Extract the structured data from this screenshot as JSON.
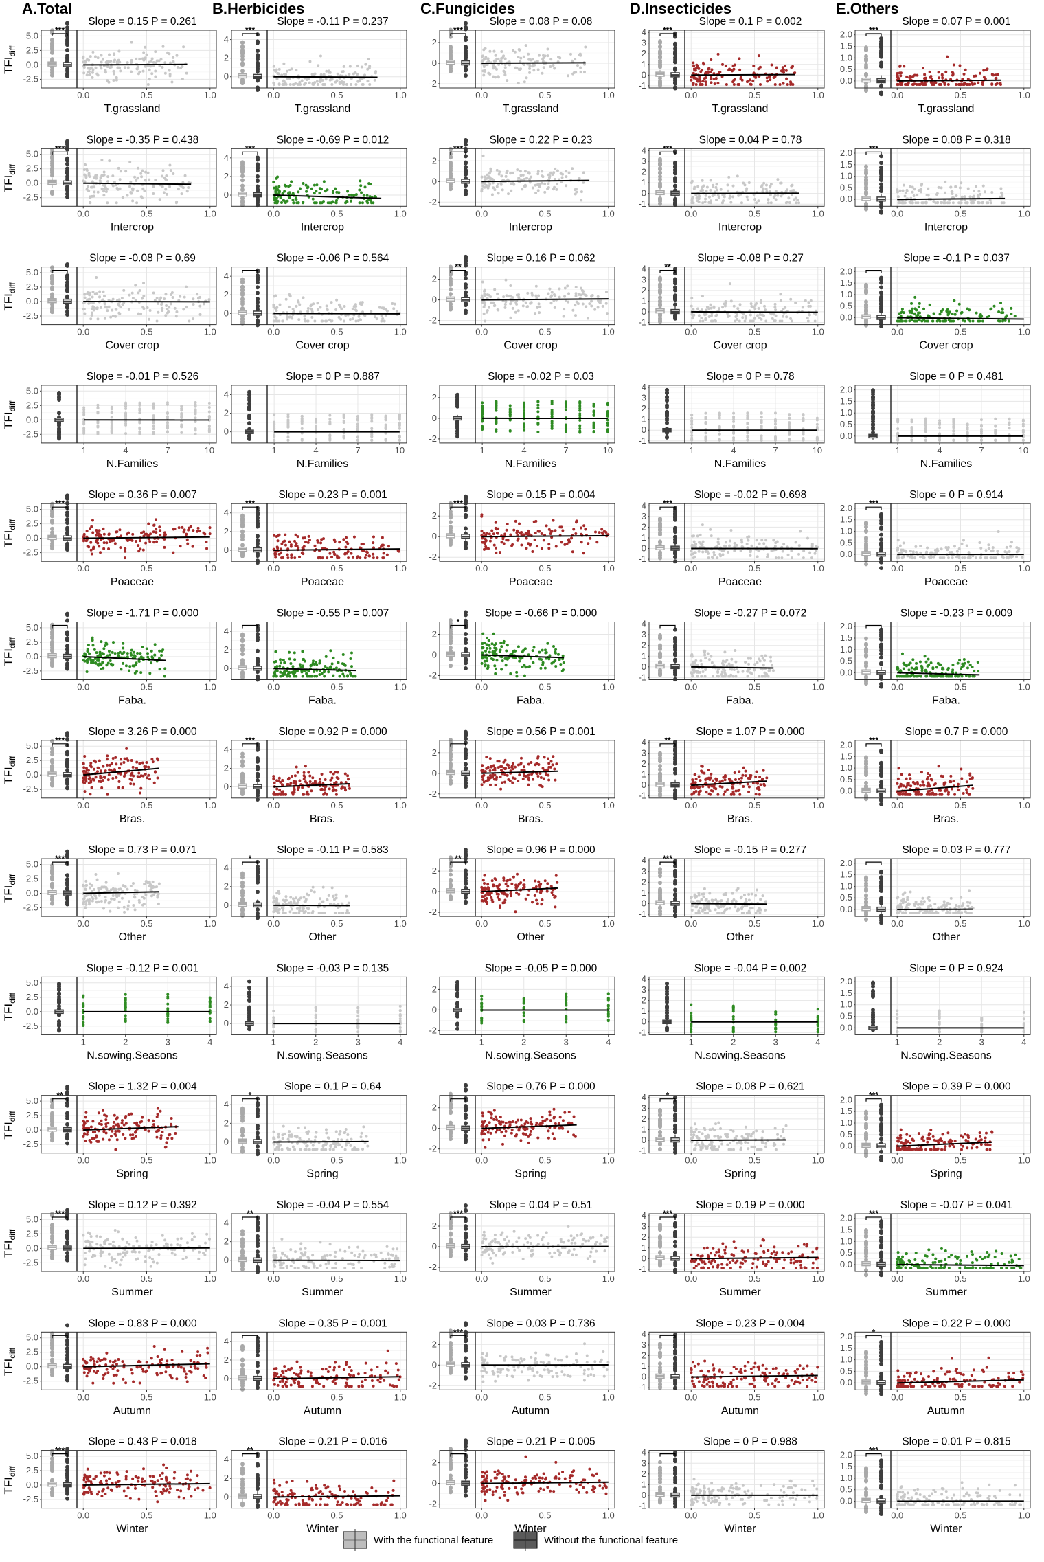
{
  "chart_data": {
    "type": "scatter",
    "description_note": "Grid of box plots (with vs without functional feature) and scatter plots with linear fits of TFIdiff against landscape/crop features, one column per pesticide category.",
    "y_label": "TFI",
    "y_label_subscript": "diff",
    "columns": [
      {
        "title": "A.Total",
        "ylim": [
          -4,
          6
        ],
        "yticks": [
          "5.0",
          "2.5",
          "0.0",
          "-2.5"
        ],
        "ytick_values": [
          5,
          2.5,
          0,
          -2.5
        ]
      },
      {
        "title": "B.Herbicides",
        "ylim": [
          -1.2,
          5
        ],
        "yticks": [
          "4",
          "2",
          "0"
        ],
        "ytick_values": [
          4,
          2,
          0
        ]
      },
      {
        "title": "C.Fungicides",
        "ylim": [
          -2.4,
          3.2
        ],
        "yticks": [
          "2",
          "0",
          "-2"
        ],
        "ytick_values": [
          2,
          0,
          -2
        ]
      },
      {
        "title": "D.Insecticides",
        "ylim": [
          -1.2,
          4.2
        ],
        "yticks": [
          "4",
          "3",
          "2",
          "1",
          "0",
          "-1"
        ],
        "ytick_values": [
          4,
          3,
          2,
          1,
          0,
          -1
        ]
      },
      {
        "title": "E.Others",
        "ylim": [
          -0.3,
          2.2
        ],
        "yticks": [
          "2.0",
          "1.5",
          "1.0",
          "0.5",
          "0.0"
        ],
        "ytick_values": [
          2,
          1.5,
          1,
          0.5,
          0
        ]
      }
    ],
    "rows": [
      {
        "feature": "T.grassland",
        "xmax": 0.82,
        "xticks": [
          "0.0",
          "0.5",
          "1.0"
        ],
        "xtick_values": [
          0,
          0.5,
          1
        ],
        "xlim": [
          -0.05,
          1.05
        ],
        "cells": [
          {
            "slope": "0.15",
            "p": "0.261",
            "sig": "***",
            "color": "grey"
          },
          {
            "slope": "-0.11",
            "p": "0.237",
            "sig": "***",
            "color": "grey"
          },
          {
            "slope": "0.08",
            "p": "0.08",
            "sig": "***",
            "color": "grey"
          },
          {
            "slope": "0.1",
            "p": "0.002",
            "sig": "***",
            "color": "red"
          },
          {
            "slope": "0.07",
            "p": "0.001",
            "sig": "***",
            "color": "red"
          }
        ]
      },
      {
        "feature": "Intercrop",
        "xmax": 0.85,
        "xticks": [
          "0.0",
          "0.5",
          "1.0"
        ],
        "xtick_values": [
          0,
          0.5,
          1
        ],
        "xlim": [
          -0.05,
          1.05
        ],
        "cells": [
          {
            "slope": "-0.35",
            "p": "0.438",
            "sig": "***",
            "color": "grey"
          },
          {
            "slope": "-0.69",
            "p": "0.012",
            "sig": "***",
            "color": "green"
          },
          {
            "slope": "0.22",
            "p": "0.23",
            "sig": "***",
            "color": "grey"
          },
          {
            "slope": "0.04",
            "p": "0.78",
            "sig": "***",
            "color": "grey"
          },
          {
            "slope": "0.08",
            "p": "0.318",
            "sig": "***",
            "color": "grey"
          }
        ]
      },
      {
        "feature": "Cover crop",
        "xmax": 1.0,
        "xticks": [
          "0.0",
          "0.5",
          "1.0"
        ],
        "xtick_values": [
          0,
          0.5,
          1
        ],
        "xlim": [
          -0.05,
          1.05
        ],
        "cells": [
          {
            "slope": "-0.08",
            "p": "0.69",
            "sig": "",
            "color": "grey"
          },
          {
            "slope": "-0.06",
            "p": "0.564",
            "sig": "",
            "color": "grey"
          },
          {
            "slope": "0.16",
            "p": "0.062",
            "sig": "**",
            "color": "grey"
          },
          {
            "slope": "-0.08",
            "p": "0.27",
            "sig": "**",
            "color": "grey"
          },
          {
            "slope": "-0.1",
            "p": "0.037",
            "sig": "",
            "color": "green"
          }
        ]
      },
      {
        "feature": "N.Families",
        "xmax": 10,
        "xticks": [
          "1",
          "4",
          "7",
          "10"
        ],
        "xtick_values": [
          1,
          4,
          7,
          10
        ],
        "xlim": [
          0.5,
          10.5
        ],
        "discrete": true,
        "cells": [
          {
            "slope": "-0.01",
            "p": "0.526",
            "sig": "none",
            "color": "grey"
          },
          {
            "slope": "0",
            "p": "0.887",
            "sig": "none",
            "color": "grey"
          },
          {
            "slope": "-0.02",
            "p": "0.03",
            "sig": "none",
            "color": "green"
          },
          {
            "slope": "0",
            "p": "0.78",
            "sig": "none",
            "color": "grey"
          },
          {
            "slope": "0",
            "p": "0.481",
            "sig": "none",
            "color": "grey"
          }
        ]
      },
      {
        "feature": "Poaceae",
        "xmax": 1.0,
        "xticks": [
          "0.0",
          "0.5",
          "1.0"
        ],
        "xtick_values": [
          0,
          0.5,
          1
        ],
        "xlim": [
          -0.05,
          1.05
        ],
        "cells": [
          {
            "slope": "0.36",
            "p": "0.007",
            "sig": "***",
            "color": "red"
          },
          {
            "slope": "0.23",
            "p": "0.001",
            "sig": "***",
            "color": "red"
          },
          {
            "slope": "0.15",
            "p": "0.004",
            "sig": "***",
            "color": "red"
          },
          {
            "slope": "-0.02",
            "p": "0.698",
            "sig": "***",
            "color": "grey"
          },
          {
            "slope": "0",
            "p": "0.914",
            "sig": "***",
            "color": "grey"
          }
        ]
      },
      {
        "feature": "Faba.",
        "xmax": 0.65,
        "xticks": [
          "0.0",
          "0.5",
          "1.0"
        ],
        "xtick_values": [
          0,
          0.5,
          1
        ],
        "xlim": [
          -0.05,
          1.05
        ],
        "cells": [
          {
            "slope": "-1.71",
            "p": "0.000",
            "sig": "",
            "color": "green"
          },
          {
            "slope": "-0.55",
            "p": "0.007",
            "sig": "",
            "color": "green"
          },
          {
            "slope": "-0.66",
            "p": "0.000",
            "sig": "*",
            "color": "green"
          },
          {
            "slope": "-0.27",
            "p": "0.072",
            "sig": "",
            "color": "grey"
          },
          {
            "slope": "-0.23",
            "p": "0.009",
            "sig": "",
            "color": "green"
          }
        ]
      },
      {
        "feature": "Bras.",
        "xmax": 0.6,
        "xticks": [
          "0.0",
          "0.5",
          "1.0"
        ],
        "xtick_values": [
          0,
          0.5,
          1
        ],
        "xlim": [
          -0.05,
          1.05
        ],
        "cells": [
          {
            "slope": "3.26",
            "p": "0.000",
            "sig": "***",
            "color": "red"
          },
          {
            "slope": "0.92",
            "p": "0.000",
            "sig": "***",
            "color": "red"
          },
          {
            "slope": "0.56",
            "p": "0.001",
            "sig": "",
            "color": "red"
          },
          {
            "slope": "1.07",
            "p": "0.000",
            "sig": "**",
            "color": "red"
          },
          {
            "slope": "0.7",
            "p": "0.000",
            "sig": "***",
            "color": "red"
          }
        ]
      },
      {
        "feature": "Other",
        "xmax": 0.6,
        "xticks": [
          "0.0",
          "0.5",
          "1.0"
        ],
        "xtick_values": [
          0,
          0.5,
          1
        ],
        "xlim": [
          -0.05,
          1.05
        ],
        "cells": [
          {
            "slope": "0.73",
            "p": "0.071",
            "sig": "***",
            "color": "grey"
          },
          {
            "slope": "-0.11",
            "p": "0.583",
            "sig": "*",
            "color": "grey"
          },
          {
            "slope": "0.96",
            "p": "0.000",
            "sig": "**",
            "color": "red"
          },
          {
            "slope": "-0.15",
            "p": "0.277",
            "sig": "***",
            "color": "grey"
          },
          {
            "slope": "0.03",
            "p": "0.777",
            "sig": "",
            "color": "grey"
          }
        ]
      },
      {
        "feature": "N.sowing.Seasons",
        "xmax": 4,
        "xticks": [
          "1",
          "2",
          "3",
          "4"
        ],
        "xtick_values": [
          1,
          2,
          3,
          4
        ],
        "xlim": [
          0.85,
          4.15
        ],
        "discrete": true,
        "cells": [
          {
            "slope": "-0.12",
            "p": "0.001",
            "sig": "none",
            "color": "green"
          },
          {
            "slope": "-0.03",
            "p": "0.135",
            "sig": "none",
            "color": "grey"
          },
          {
            "slope": "-0.05",
            "p": "0.000",
            "sig": "none",
            "color": "green"
          },
          {
            "slope": "-0.04",
            "p": "0.002",
            "sig": "none",
            "color": "green"
          },
          {
            "slope": "0",
            "p": "0.924",
            "sig": "none",
            "color": "grey"
          }
        ]
      },
      {
        "feature": "Spring",
        "xmax": 0.75,
        "xticks": [
          "0.0",
          "0.5",
          "1.0"
        ],
        "xtick_values": [
          0,
          0.5,
          1
        ],
        "xlim": [
          -0.05,
          1.05
        ],
        "cells": [
          {
            "slope": "1.32",
            "p": "0.004",
            "sig": "**",
            "color": "red"
          },
          {
            "slope": "0.1",
            "p": "0.64",
            "sig": "*",
            "color": "grey"
          },
          {
            "slope": "0.76",
            "p": "0.000",
            "sig": "",
            "color": "red"
          },
          {
            "slope": "0.08",
            "p": "0.621",
            "sig": "*",
            "color": "grey"
          },
          {
            "slope": "0.39",
            "p": "0.000",
            "sig": "***",
            "color": "red"
          }
        ]
      },
      {
        "feature": "Summer",
        "xmax": 1.0,
        "xticks": [
          "0.0",
          "0.5",
          "1.0"
        ],
        "xtick_values": [
          0,
          0.5,
          1
        ],
        "xlim": [
          -0.05,
          1.05
        ],
        "cells": [
          {
            "slope": "0.12",
            "p": "0.392",
            "sig": "***",
            "color": "grey"
          },
          {
            "slope": "-0.04",
            "p": "0.554",
            "sig": "**",
            "color": "grey"
          },
          {
            "slope": "0.04",
            "p": "0.51",
            "sig": "***",
            "color": "grey"
          },
          {
            "slope": "0.19",
            "p": "0.000",
            "sig": "***",
            "color": "red"
          },
          {
            "slope": "-0.07",
            "p": "0.041",
            "sig": "***",
            "color": "green"
          }
        ]
      },
      {
        "feature": "Autumn",
        "xmax": 1.0,
        "xticks": [
          "0.0",
          "0.5",
          "1.0"
        ],
        "xtick_values": [
          0,
          0.5,
          1
        ],
        "xlim": [
          -0.05,
          1.05
        ],
        "cells": [
          {
            "slope": "0.83",
            "p": "0.000",
            "sig": "",
            "color": "red"
          },
          {
            "slope": "0.35",
            "p": "0.001",
            "sig": "",
            "color": "red"
          },
          {
            "slope": "0.03",
            "p": "0.736",
            "sig": "***",
            "color": "grey"
          },
          {
            "slope": "0.23",
            "p": "0.004",
            "sig": "",
            "color": "red"
          },
          {
            "slope": "0.22",
            "p": "0.000",
            "sig": "*",
            "color": "red"
          }
        ]
      },
      {
        "feature": "Winter",
        "xmax": 1.0,
        "xticks": [
          "0.0",
          "0.5",
          "1.0"
        ],
        "xtick_values": [
          0,
          0.5,
          1
        ],
        "xlim": [
          -0.05,
          1.05
        ],
        "cells": [
          {
            "slope": "0.43",
            "p": "0.018",
            "sig": "***",
            "color": "red"
          },
          {
            "slope": "0.21",
            "p": "0.016",
            "sig": "**",
            "color": "red"
          },
          {
            "slope": "0.21",
            "p": "0.005",
            "sig": "",
            "color": "red"
          },
          {
            "slope": "0",
            "p": "0.988",
            "sig": "",
            "color": "grey"
          },
          {
            "slope": "0.01",
            "p": "0.815",
            "sig": "***",
            "color": "grey"
          }
        ]
      }
    ],
    "legend": [
      {
        "label": "With the functional feature",
        "color": "#bdbdbd"
      },
      {
        "label": "Without the functional feature",
        "color": "#5a5a5a"
      }
    ],
    "colors": {
      "red": "#a52a2a",
      "green": "#2e8b22",
      "grey": "#c8c8c8",
      "with_box": "#a9a9a9",
      "without_box": "#3d3d3d"
    }
  }
}
